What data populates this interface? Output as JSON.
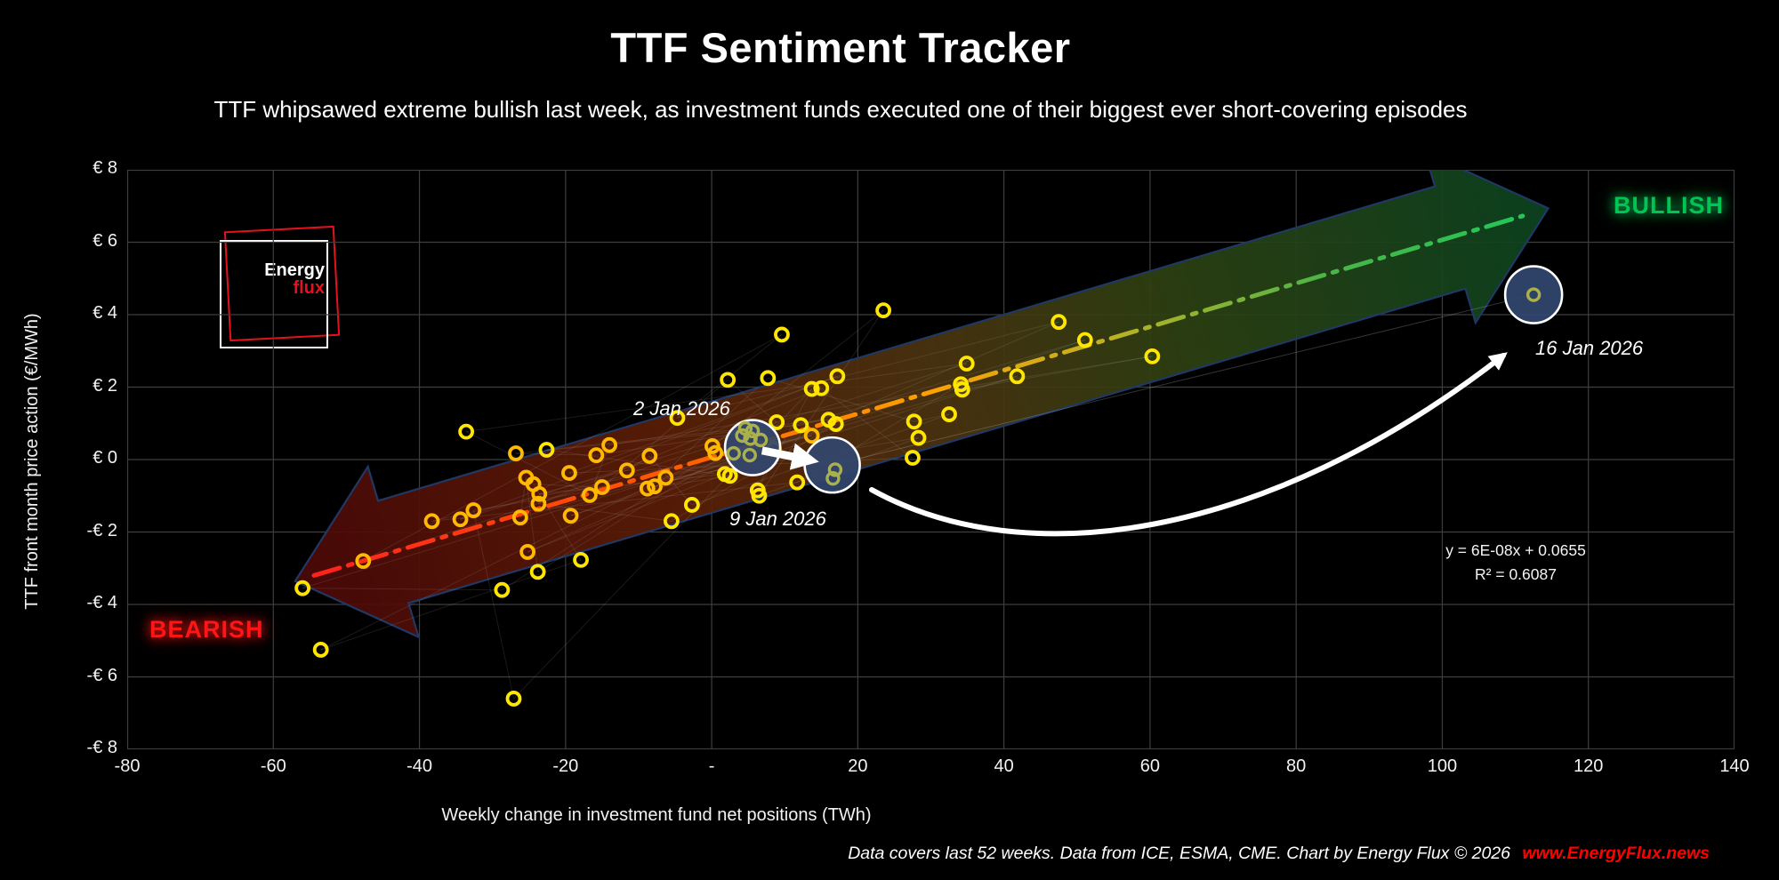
{
  "title": "TTF Sentiment Tracker",
  "subtitle": "TTF whipsawed extreme bullish last week, as investment funds executed one of their biggest ever short-covering episodes",
  "logo": {
    "line1": "Energy",
    "line2": "flux"
  },
  "labels": {
    "bullish": "BULLISH",
    "bearish": "BEARISH"
  },
  "annotations": {
    "jan2": "2 Jan 2026",
    "jan9": "9 Jan 2026",
    "jan16": "16 Jan 2026"
  },
  "equation": {
    "line1": "y = 6E-08x + 0.0655",
    "line2": "R² = 0.6087"
  },
  "footer": {
    "text": "Data covers last 52 weeks. Data from ICE, ESMA, CME. Chart by Energy Flux © 2026",
    "link": "www.EnergyFlux.news"
  },
  "colors": {
    "background": "#000000",
    "grid": "#3e3e3e",
    "point_yellow": "#ffe600",
    "point_gold": "#ffb900",
    "highlight_fill": "#32466f",
    "highlight_ring": "#a9b14d",
    "bullish_green": "#00c553",
    "bearish_red": "#ff1515",
    "band_border": "#203864"
  },
  "chart_data": {
    "type": "scatter",
    "title": "TTF Sentiment Tracker",
    "xlabel": "Weekly change in investment fund net positions (TWh)",
    "ylabel": "TTF front month price action (€/MWh)",
    "xlim": [
      -80,
      140
    ],
    "ylim": [
      -8,
      8
    ],
    "grid": true,
    "legend": false,
    "x_tick_values": [
      -80,
      -60,
      -40,
      -20,
      0,
      20,
      40,
      60,
      80,
      100,
      120,
      140
    ],
    "x_tick_labels": [
      "-80",
      "-60",
      "-40",
      "-20",
      "-",
      "20",
      "40",
      "60",
      "80",
      "100",
      "120",
      "140"
    ],
    "y_tick_values": [
      8,
      6,
      4,
      2,
      0,
      -2,
      -4,
      -6,
      -8
    ],
    "y_tick_labels": [
      "€ 8",
      "€ 6",
      "€ 4",
      "€ 2",
      "€ 0",
      "-€ 2",
      "-€ 4",
      "-€ 6",
      "-€ 8"
    ],
    "trend": {
      "equation": "y = 6E-08x + 0.0655",
      "r2": 0.6087,
      "slope_per_twh": 0.06,
      "intercept": 0.0655,
      "x_start": -57,
      "x_end": 114.5
    },
    "points": [
      [
        -56,
        -3.55,
        "y"
      ],
      [
        -53.5,
        -5.25,
        "y"
      ],
      [
        -47.7,
        -2.8,
        "g"
      ],
      [
        -38.3,
        -1.7,
        "g"
      ],
      [
        -34.4,
        -1.65,
        "g"
      ],
      [
        -32.6,
        -1.4,
        "g"
      ],
      [
        -33.6,
        0.77,
        "y"
      ],
      [
        -28.7,
        -3.6,
        "y"
      ],
      [
        -27.1,
        -6.6,
        "y"
      ],
      [
        -26.2,
        -1.6,
        "g"
      ],
      [
        -25.4,
        -0.5,
        "g"
      ],
      [
        -24.4,
        -0.68,
        "g"
      ],
      [
        -23.6,
        -0.95,
        "g"
      ],
      [
        -23.7,
        -1.22,
        "g"
      ],
      [
        -25.2,
        -2.55,
        "g"
      ],
      [
        -23.8,
        -3.1,
        "y"
      ],
      [
        -26.8,
        0.17,
        "g"
      ],
      [
        -22.6,
        0.27,
        "y"
      ],
      [
        -19.5,
        -0.37,
        "g"
      ],
      [
        -19.3,
        -1.55,
        "g"
      ],
      [
        -17.9,
        -2.77,
        "y"
      ],
      [
        -16.7,
        -0.98,
        "g"
      ],
      [
        -15,
        -0.76,
        "g"
      ],
      [
        -15.8,
        0.12,
        "g"
      ],
      [
        -14,
        0.4,
        "g"
      ],
      [
        -11.6,
        -0.3,
        "g"
      ],
      [
        -8.5,
        0.1,
        "g"
      ],
      [
        -8.8,
        -0.8,
        "g"
      ],
      [
        -7.8,
        -0.74,
        "g"
      ],
      [
        -6.3,
        -0.5,
        "g"
      ],
      [
        -5.5,
        -1.7,
        "y"
      ],
      [
        -2.7,
        -1.25,
        "y"
      ],
      [
        -4.7,
        1.15,
        "y"
      ],
      [
        0.1,
        0.37,
        "g"
      ],
      [
        0.5,
        0.18,
        "g"
      ],
      [
        1.8,
        -0.4,
        "y"
      ],
      [
        2.5,
        -0.45,
        "y"
      ],
      [
        2.2,
        2.2,
        "y"
      ],
      [
        7.7,
        2.25,
        "y"
      ],
      [
        9.6,
        3.45,
        "y"
      ],
      [
        8.9,
        1.03,
        "y"
      ],
      [
        8.5,
        0.3,
        "g"
      ],
      [
        6.3,
        -0.85,
        "y"
      ],
      [
        6.5,
        -1.0,
        "y"
      ],
      [
        11.7,
        -0.63,
        "y"
      ],
      [
        12.2,
        0.95,
        "y"
      ],
      [
        13.7,
        0.66,
        "g"
      ],
      [
        13.7,
        1.95,
        "y"
      ],
      [
        15,
        1.97,
        "y"
      ],
      [
        17.2,
        2.3,
        "y"
      ],
      [
        16,
        1.1,
        "y"
      ],
      [
        17,
        0.98,
        "y"
      ],
      [
        23.5,
        4.12,
        "y"
      ],
      [
        27.7,
        1.05,
        "y"
      ],
      [
        28.3,
        0.6,
        "y"
      ],
      [
        27.5,
        0.05,
        "y"
      ],
      [
        32.5,
        1.25,
        "y"
      ],
      [
        34.1,
        2.08,
        "y"
      ],
      [
        34.3,
        1.93,
        "y"
      ],
      [
        34.9,
        2.65,
        "y"
      ],
      [
        41.8,
        2.3,
        "y"
      ],
      [
        47.5,
        3.8,
        "y"
      ],
      [
        51.1,
        3.3,
        "y"
      ],
      [
        60.3,
        2.85,
        "y"
      ]
    ],
    "highlights": [
      {
        "label": "2 Jan 2026",
        "center": [
          5.6,
          0.33
        ],
        "radius_px": 31,
        "points": [
          [
            4.6,
            0.86
          ],
          [
            5.6,
            0.79
          ],
          [
            4.2,
            0.66
          ],
          [
            5.3,
            0.58
          ],
          [
            6.7,
            0.54
          ],
          [
            3.0,
            0.17
          ],
          [
            5.2,
            0.12
          ]
        ]
      },
      {
        "label": "9 Jan 2026",
        "center": [
          16.5,
          -0.15
        ],
        "radius_px": 31,
        "points": [
          [
            16.9,
            -0.28
          ],
          [
            16.6,
            -0.52
          ]
        ]
      },
      {
        "label": "16 Jan 2026",
        "center": [
          112.5,
          4.55
        ],
        "radius_px": 32,
        "points": [
          [
            112.5,
            4.55
          ]
        ]
      }
    ]
  }
}
